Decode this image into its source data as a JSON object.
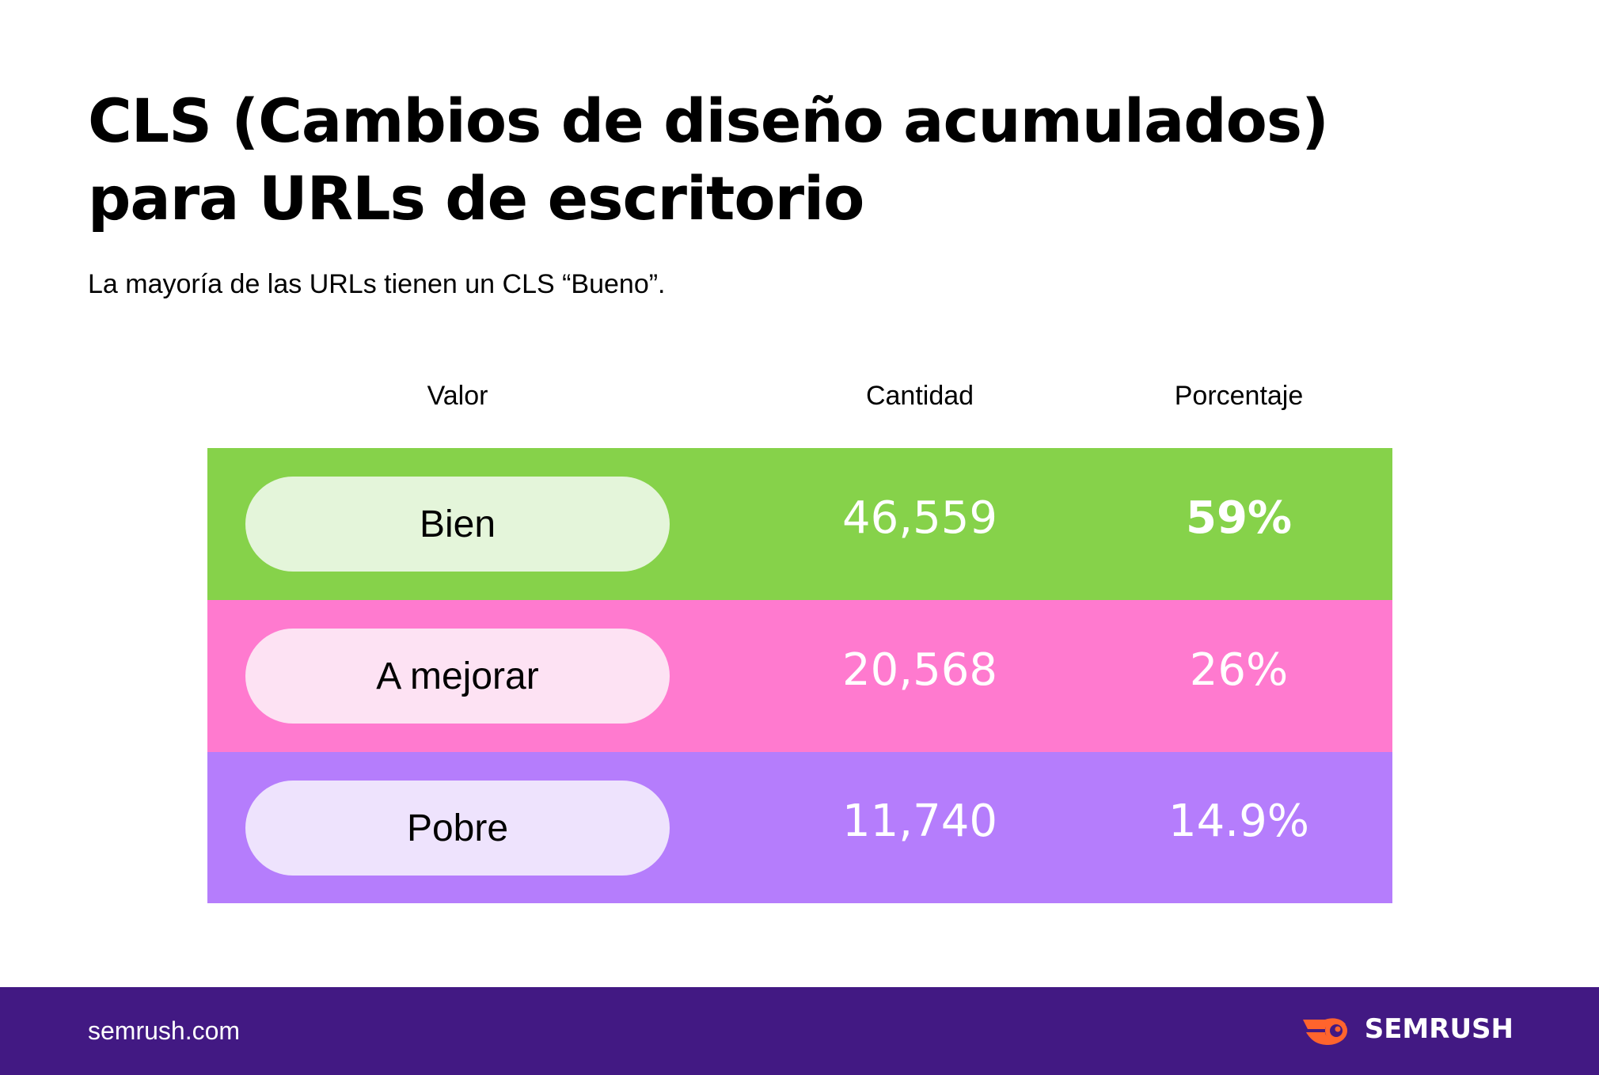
{
  "title_line1": "CLS (Cambios de diseño acumulados)",
  "title_line2": "para URLs de escritorio",
  "subtitle": "La mayoría de las URLs tienen un CLS “Bueno”.",
  "chart_data": {
    "type": "table",
    "columns": [
      "Valor",
      "Cantidad",
      "Porcentaje"
    ],
    "rows": [
      {
        "valor": "Bien",
        "cantidad": "46,559",
        "porcentaje": "59%",
        "row_color": "#86D24A",
        "pill_color": "#E4F5DA"
      },
      {
        "valor": "A mejorar",
        "cantidad": "20,568",
        "porcentaje": "26%",
        "row_color": "#FF7ACF",
        "pill_color": "#FDE2F3"
      },
      {
        "valor": "Pobre",
        "cantidad": "11,740",
        "porcentaje": "14.9%",
        "row_color": "#B57DFC",
        "pill_color": "#EEE3FD"
      }
    ]
  },
  "footer": {
    "url": "semrush.com",
    "brand": "SEMRUSH",
    "brand_icon": "semrush-flame-icon",
    "background": "#421983",
    "brand_accent": "#FF642D"
  }
}
